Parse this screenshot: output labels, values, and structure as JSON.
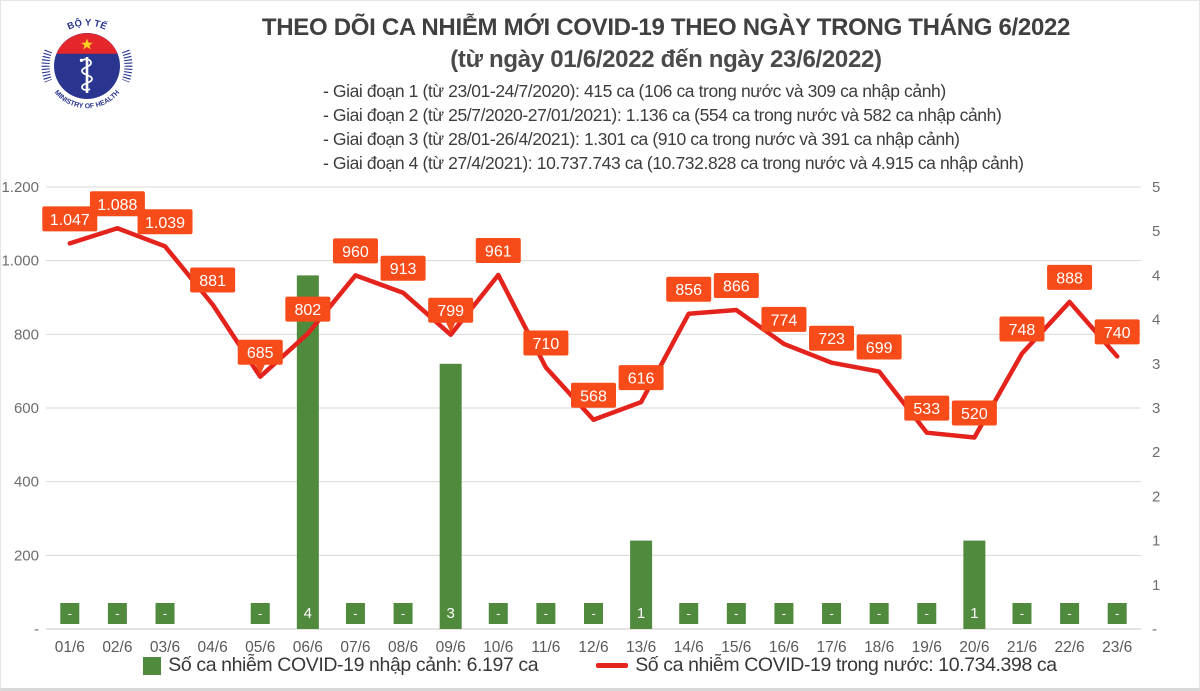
{
  "header": {
    "title": "THEO DÕI CA NHIỄM MỚI COVID-19 THEO NGÀY TRONG THÁNG 6/2022",
    "subtitle": "(từ ngày 01/6/2022 đến ngày 23/6/2022)",
    "phases": [
      "- Giai đoạn 1 (từ 23/01-24/7/2020): 415 ca (106 ca trong nước và 309 ca nhập cảnh)",
      "- Giai đoạn 2 (từ 25/7/2020-27/01/2021): 1.136 ca (554 ca trong nước và 582 ca nhập cảnh)",
      "- Giai đoạn 3 (từ 28/01-26/4/2021): 1.301 ca (910 ca trong nước và 391 ca nhập cảnh)",
      "- Giai đoạn 4 (từ 27/4/2021): 10.737.743 ca (10.732.828 ca trong nước và 4.915 ca nhập cảnh)"
    ],
    "logo": {
      "top_text": "BỘ Y TẾ",
      "bottom_text": "MINISTRY OF HEALTH",
      "navy": "#2a3590",
      "red": "#e5262b",
      "star_yellow": "#fdd021"
    }
  },
  "chart_data": {
    "type": "combo",
    "categories": [
      "01/6",
      "02/6",
      "03/6",
      "04/6",
      "05/6",
      "06/6",
      "07/6",
      "08/6",
      "09/6",
      "10/6",
      "11/6",
      "12/6",
      "13/6",
      "14/6",
      "15/6",
      "16/6",
      "17/6",
      "18/6",
      "19/6",
      "20/6",
      "21/6",
      "22/6",
      "23/6"
    ],
    "series": [
      {
        "name": "Số ca nhiễm COVID-19 trong nước",
        "type": "line",
        "axis": "left",
        "color": "#e3231c",
        "label_box_color": "#f74b1a",
        "values": [
          1047,
          1088,
          1039,
          881,
          685,
          802,
          960,
          913,
          799,
          961,
          710,
          568,
          616,
          856,
          866,
          774,
          723,
          699,
          533,
          520,
          748,
          888,
          740
        ],
        "labels": [
          "1.047",
          "1.088",
          "1.039",
          "881",
          "685",
          "802",
          "960",
          "913",
          "799",
          "961",
          "710",
          "568",
          "616",
          "856",
          "866",
          "774",
          "723",
          "699",
          "533",
          "520",
          "748",
          "888",
          "740"
        ]
      },
      {
        "name": "Số ca nhiễm COVID-19 nhập cảnh",
        "type": "bar",
        "axis": "right",
        "color": "#4f8a3d",
        "values": [
          0,
          0,
          0,
          null,
          0,
          4,
          0,
          0,
          3,
          0,
          0,
          0,
          1,
          0,
          0,
          0,
          0,
          0,
          0,
          1,
          0,
          0,
          0
        ],
        "labels": [
          "-",
          "-",
          "-",
          null,
          "-",
          "4",
          "-",
          "-",
          "3",
          "-",
          "-",
          "-",
          "1",
          "-",
          "-",
          "-",
          "-",
          "-",
          "-",
          "1",
          "-",
          "-",
          "-"
        ]
      }
    ],
    "left_axis": {
      "min": 0,
      "max": 1200,
      "step": 200,
      "tick_labels": [
        "-",
        "200",
        "400",
        "600",
        "800",
        "1.000",
        "1.200"
      ]
    },
    "right_axis": {
      "min": 0,
      "max": 5,
      "step": 0.5,
      "tick_labels": [
        "-",
        "1",
        "1",
        "2",
        "2",
        "3",
        "3",
        "4",
        "4",
        "5",
        "5"
      ]
    },
    "grid": true,
    "grid_color": "#d9d9d9",
    "axis_text_color": "#6e6e6e",
    "date_text_color": "#595959",
    "callout_indices": [
      4,
      8
    ],
    "legend_position": "bottom"
  },
  "legend": [
    {
      "swatch": "square",
      "color": "#4f8a3d",
      "label": "Số ca nhiễm COVID-19 nhập cảnh: 6.197 ca"
    },
    {
      "swatch": "line",
      "color": "#e3231c",
      "label": "Số ca nhiễm COVID-19 trong nước: 10.734.398 ca"
    }
  ]
}
